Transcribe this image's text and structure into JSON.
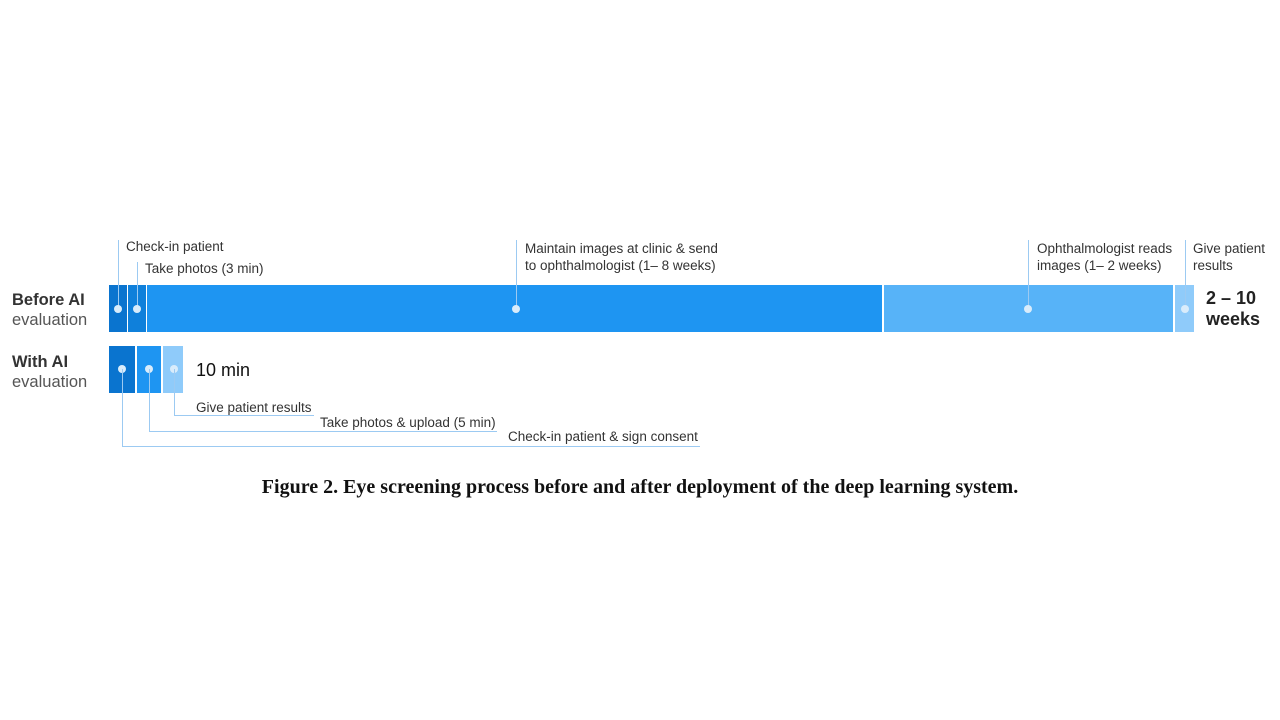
{
  "rows": {
    "before": {
      "label_line1": "Before AI",
      "label_line2": "evaluation",
      "total": "2 – 10 weeks",
      "steps": [
        {
          "label": "Check-in patient"
        },
        {
          "label": "Take photos (3 min)"
        },
        {
          "label_line1": "Maintain images at clinic & send",
          "label_line2": "to ophthalmologist (1– 8 weeks)"
        },
        {
          "label_line1": "Ophthalmologist reads",
          "label_line2": "images (1– 2 weeks)"
        },
        {
          "label_line1": "Give patient",
          "label_line2": "results"
        }
      ]
    },
    "with": {
      "label_line1": "With AI",
      "label_line2": "evaluation",
      "total": "10 min",
      "steps": [
        {
          "label": "Check-in patient & sign consent"
        },
        {
          "label": "Take photos & upload (5 min)"
        },
        {
          "label": "Give patient results"
        }
      ]
    }
  },
  "colors": {
    "dark": "#0a74cf",
    "main": "#1e95f2",
    "light": "#57b3f8",
    "lighter": "#8fcbfa",
    "connector": "#9ccaf2"
  },
  "caption": "Figure 2. Eye screening process before and after deployment of the deep learning system."
}
